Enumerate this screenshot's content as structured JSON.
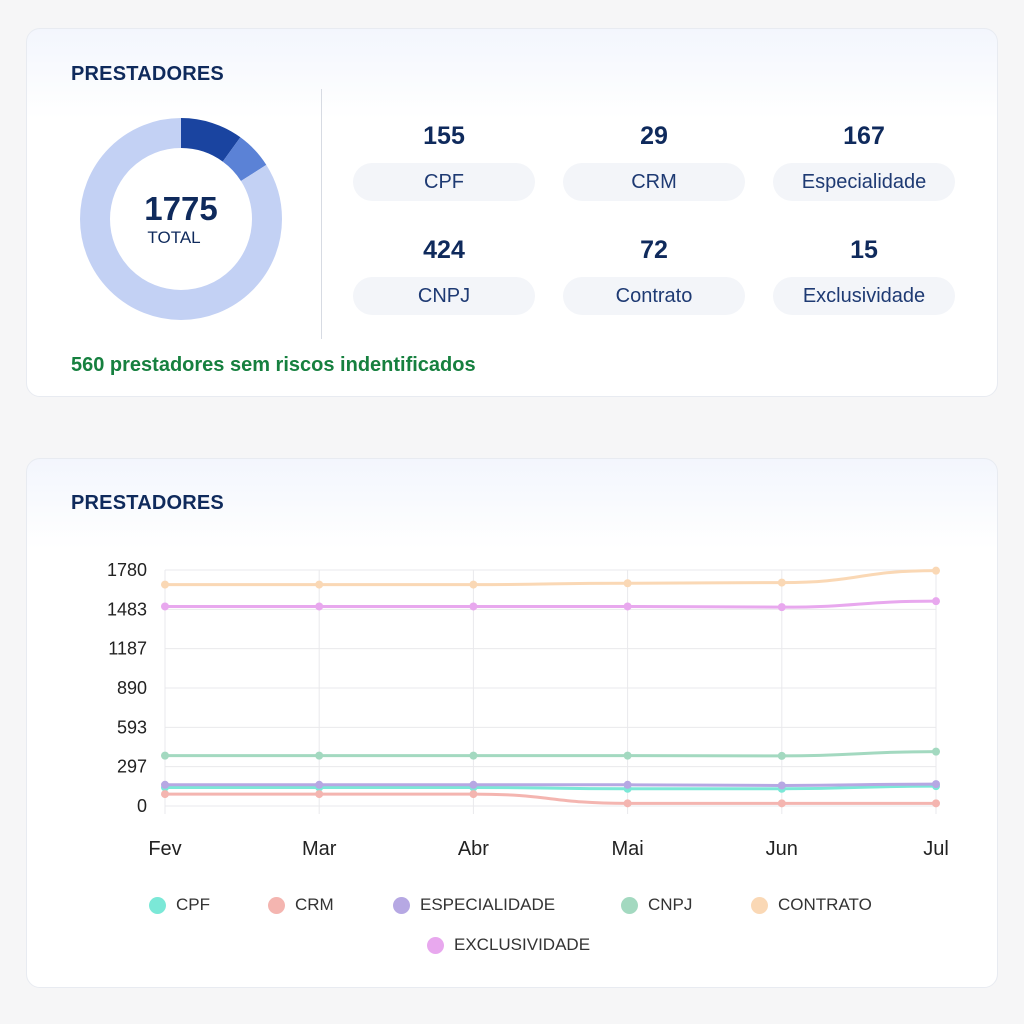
{
  "summary": {
    "title": "PRESTADORES",
    "total": "1775",
    "total_label": "TOTAL",
    "stats": [
      {
        "value": "155",
        "label": "CPF"
      },
      {
        "value": "29",
        "label": "CRM"
      },
      {
        "value": "167",
        "label": "Especialidade"
      },
      {
        "value": "424",
        "label": "CNPJ"
      },
      {
        "value": "72",
        "label": "Contrato"
      },
      {
        "value": "15",
        "label": "Exclusividade"
      }
    ],
    "no_risk_text": "560 prestadores sem riscos indentificados",
    "donut_segments": [
      {
        "fraction": 0.1,
        "color": "#1a44a0"
      },
      {
        "fraction": 0.06,
        "color": "#5b82d6"
      },
      {
        "fraction": 0.84,
        "color": "#c3d1f4"
      }
    ]
  },
  "trend": {
    "title": "PRESTADORES"
  },
  "chart_data": {
    "type": "line",
    "categories": [
      "Fev",
      "Mar",
      "Abr",
      "Mai",
      "Jun",
      "Jul"
    ],
    "yticks": [
      "1780",
      "1483",
      "1187",
      "890",
      "593",
      "297",
      "0"
    ],
    "ylim": [
      0,
      1780
    ],
    "grid": true,
    "legend_placement": "bottom",
    "series": [
      {
        "name": "CPF",
        "color": "#7be8d7",
        "values": [
          140,
          140,
          140,
          130,
          130,
          150
        ]
      },
      {
        "name": "CRM",
        "color": "#f4b5b0",
        "values": [
          90,
          90,
          90,
          20,
          20,
          20
        ]
      },
      {
        "name": "ESPECIALIDADE",
        "color": "#b6a8e3",
        "values": [
          160,
          160,
          160,
          160,
          155,
          165
        ]
      },
      {
        "name": "CNPJ",
        "color": "#a3d9c0",
        "values": [
          380,
          380,
          380,
          380,
          378,
          410
        ]
      },
      {
        "name": "CONTRATO",
        "color": "#fad8b5",
        "values": [
          1670,
          1670,
          1670,
          1680,
          1685,
          1775
        ]
      },
      {
        "name": "EXCLUSIVIDADE",
        "color": "#e8a8ee",
        "values": [
          1505,
          1505,
          1505,
          1505,
          1500,
          1545
        ]
      }
    ]
  }
}
